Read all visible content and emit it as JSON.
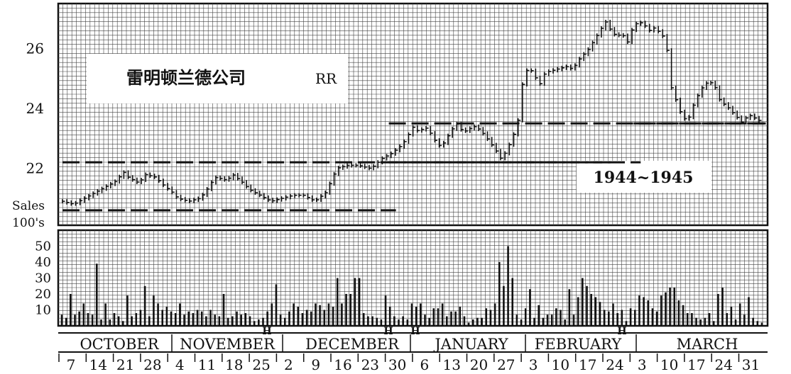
{
  "chart_data": [
    {
      "type": "line",
      "subtype": "daily price bars",
      "title": "雷明顿兰德公司",
      "tag": "RR",
      "period_label": "1944~1945",
      "ylim": [
        20.1,
        27.5
      ],
      "y_ticks": [
        22,
        24,
        26
      ],
      "grid": true,
      "price_path": [
        [
          0,
          20.9
        ],
        [
          2,
          20.8
        ],
        [
          4,
          21.0
        ],
        [
          6,
          21.2
        ],
        [
          8,
          21.4
        ],
        [
          10,
          21.6
        ],
        [
          11,
          21.9
        ],
        [
          12,
          21.7
        ],
        [
          14,
          21.5
        ],
        [
          15,
          21.8
        ],
        [
          17,
          21.7
        ],
        [
          18,
          21.5
        ],
        [
          20,
          21.2
        ],
        [
          21,
          21.0
        ],
        [
          23,
          20.9
        ],
        [
          25,
          21.0
        ],
        [
          26,
          21.2
        ],
        [
          27,
          21.5
        ],
        [
          28,
          21.7
        ],
        [
          30,
          21.6
        ],
        [
          31,
          21.8
        ],
        [
          33,
          21.5
        ],
        [
          34,
          21.3
        ],
        [
          36,
          21.1
        ],
        [
          38,
          20.9
        ],
        [
          40,
          21.0
        ],
        [
          42,
          21.1
        ],
        [
          44,
          21.1
        ],
        [
          46,
          20.9
        ],
        [
          48,
          21.2
        ],
        [
          49,
          21.6
        ],
        [
          50,
          22.0
        ],
        [
          52,
          22.1
        ],
        [
          54,
          22.1
        ],
        [
          56,
          22.0
        ],
        [
          57,
          22.1
        ],
        [
          58,
          22.3
        ],
        [
          60,
          22.5
        ],
        [
          62,
          22.8
        ],
        [
          63,
          23.1
        ],
        [
          64,
          23.4
        ],
        [
          65,
          23.2
        ],
        [
          66,
          23.4
        ],
        [
          67,
          23.2
        ],
        [
          68,
          22.9
        ],
        [
          69,
          22.7
        ],
        [
          70,
          23.0
        ],
        [
          71,
          23.3
        ],
        [
          72,
          23.5
        ],
        [
          73,
          23.2
        ],
        [
          75,
          23.4
        ],
        [
          76,
          23.3
        ],
        [
          77,
          23.1
        ],
        [
          79,
          22.6
        ],
        [
          80,
          22.3
        ],
        [
          81,
          22.6
        ],
        [
          82,
          23.0
        ],
        [
          83,
          23.5
        ],
        [
          84,
          25.0
        ],
        [
          85,
          25.4
        ],
        [
          86,
          25.1
        ],
        [
          87,
          24.8
        ],
        [
          88,
          25.2
        ],
        [
          90,
          25.3
        ],
        [
          92,
          25.4
        ],
        [
          93,
          25.3
        ],
        [
          94,
          25.6
        ],
        [
          95,
          25.8
        ],
        [
          96,
          26.0
        ],
        [
          97,
          26.3
        ],
        [
          98,
          26.6
        ],
        [
          99,
          26.9
        ],
        [
          100,
          26.6
        ],
        [
          101,
          26.4
        ],
        [
          102,
          26.5
        ],
        [
          103,
          26.2
        ],
        [
          104,
          26.7
        ],
        [
          105,
          26.9
        ],
        [
          106,
          26.8
        ],
        [
          107,
          26.6
        ],
        [
          108,
          26.7
        ],
        [
          109,
          26.5
        ],
        [
          110,
          26.3
        ],
        [
          111,
          24.7
        ],
        [
          112,
          24.2
        ],
        [
          113,
          23.7
        ],
        [
          114,
          23.6
        ],
        [
          115,
          24.1
        ],
        [
          116,
          24.5
        ],
        [
          117,
          24.8
        ],
        [
          118,
          24.9
        ],
        [
          119,
          24.7
        ],
        [
          120,
          24.2
        ],
        [
          121,
          24.1
        ],
        [
          122,
          23.9
        ],
        [
          123,
          23.7
        ],
        [
          124,
          23.5
        ],
        [
          125,
          23.8
        ],
        [
          126,
          23.7
        ],
        [
          127,
          23.6
        ]
      ],
      "reference_lines": [
        {
          "y": 22.2,
          "from_week": 0,
          "to_week": 21
        },
        {
          "y": 20.6,
          "from_week": 0,
          "to_week": 12
        },
        {
          "y": 23.5,
          "from_week": 12,
          "to_week": 25.6
        },
        {
          "y": 22.2,
          "from_week": 12,
          "to_week": 20
        },
        {
          "y": 23.5,
          "from_week": 21,
          "to_week": 25.6
        }
      ]
    },
    {
      "type": "bar",
      "title": "",
      "ylabel": "Sales 100's",
      "ylim": [
        0,
        60
      ],
      "y_ticks": [
        10,
        20,
        30,
        40,
        50
      ],
      "grid": true,
      "volumes": [
        7,
        5,
        20,
        7,
        9,
        14,
        8,
        7,
        39,
        4,
        14,
        4,
        8,
        6,
        3,
        19,
        6,
        8,
        10,
        25,
        6,
        19,
        14,
        10,
        12,
        9,
        8,
        14,
        7,
        9,
        8,
        10,
        9,
        6,
        10,
        7,
        6,
        20,
        5,
        6,
        9,
        7,
        8,
        6,
        3,
        4,
        5,
        9,
        14,
        26,
        7,
        5,
        9,
        14,
        12,
        8,
        10,
        9,
        14,
        13,
        10,
        14,
        12,
        30,
        14,
        20,
        20,
        30,
        30,
        8,
        6,
        6,
        5,
        4,
        19,
        12,
        6,
        4,
        6,
        4,
        14,
        12,
        14,
        7,
        5,
        11,
        11,
        14,
        6,
        9,
        9,
        12,
        6,
        2,
        4,
        5,
        5,
        11,
        10,
        14,
        40,
        25,
        50,
        30,
        7,
        4,
        11,
        23,
        5,
        13,
        5,
        7,
        7,
        11,
        10,
        4,
        23,
        7,
        18,
        30,
        25,
        20,
        18,
        15,
        10,
        9,
        14,
        8,
        10,
        3,
        11,
        10,
        19,
        18,
        16,
        11,
        9,
        19,
        21,
        24,
        24,
        16,
        13,
        8,
        8,
        5,
        4,
        5,
        8,
        3,
        20,
        24,
        8,
        12,
        4,
        14,
        7,
        18,
        5,
        3,
        2
      ]
    }
  ],
  "x_axis": {
    "months": [
      "OCTOBER",
      "NOVEMBER",
      "DECEMBER",
      "JANUARY",
      "FEBRUARY",
      "MARCH"
    ],
    "week_labels": [
      "7",
      "14",
      "21",
      "28",
      "4",
      "11",
      "18",
      "25",
      "2",
      "9",
      "16",
      "23",
      "30",
      "6",
      "13",
      "20",
      "27",
      "3",
      "10",
      "17",
      "24",
      "3",
      "10",
      "17",
      "24",
      "31"
    ],
    "holiday_marker": "H"
  },
  "volume_axis_label": [
    "Sales",
    "100's"
  ]
}
